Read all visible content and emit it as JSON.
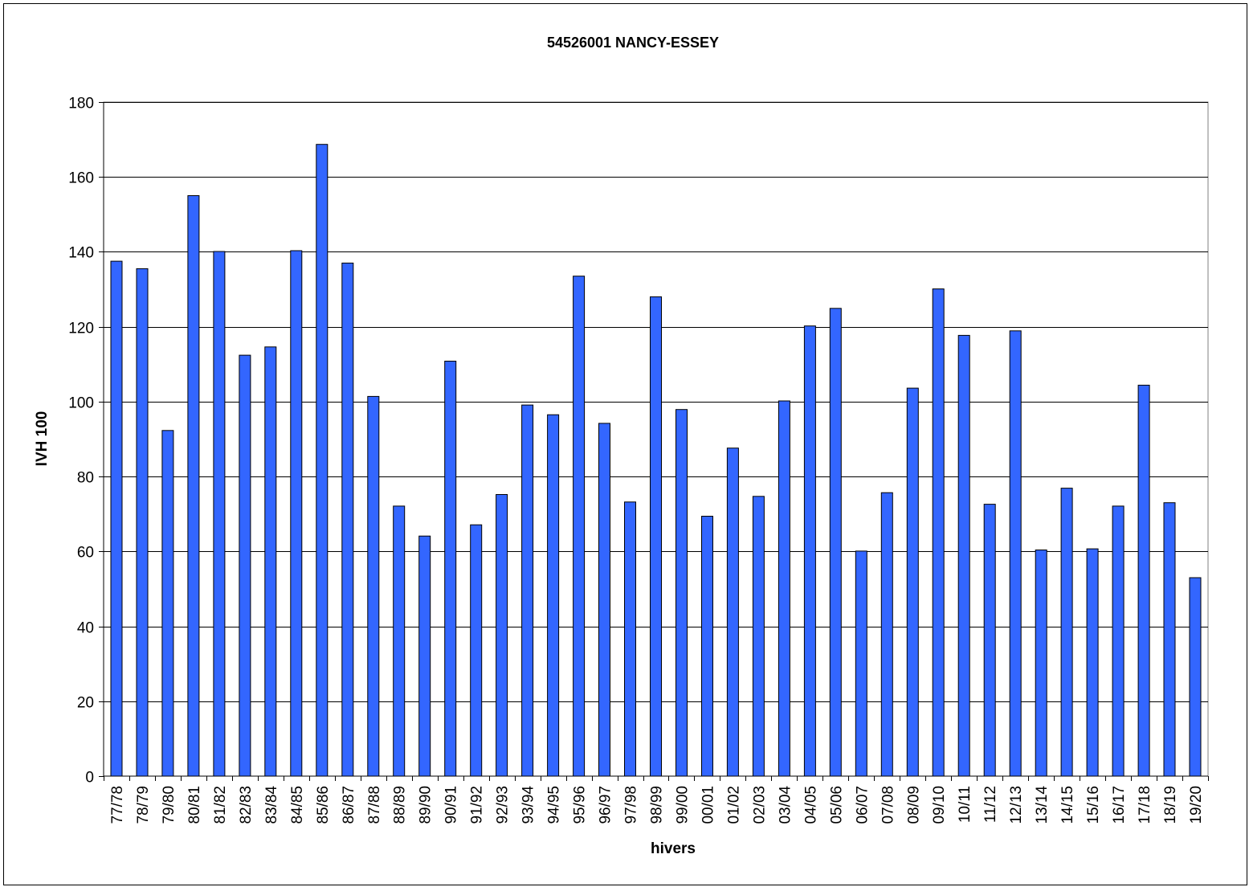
{
  "chart_data": {
    "type": "bar",
    "title": "54526001 NANCY-ESSEY",
    "xlabel": "hivers",
    "ylabel": "IVH 100",
    "ylim": [
      0,
      180
    ],
    "yticks": [
      0,
      20,
      40,
      60,
      80,
      100,
      120,
      140,
      160,
      180
    ],
    "grid": true,
    "legend": "none",
    "bar_color": "#3366ff",
    "bar_edge_color": "#000000",
    "categories": [
      "77/78",
      "78/79",
      "79/80",
      "80/81",
      "81/82",
      "82/83",
      "83/84",
      "84/85",
      "85/86",
      "86/87",
      "87/88",
      "88/89",
      "89/90",
      "90/91",
      "91/92",
      "92/93",
      "93/94",
      "94/95",
      "95/96",
      "96/97",
      "97/98",
      "98/99",
      "99/00",
      "00/01",
      "01/02",
      "02/03",
      "03/04",
      "04/05",
      "05/06",
      "06/07",
      "07/08",
      "08/09",
      "09/10",
      "10/11",
      "11/12",
      "12/13",
      "13/14",
      "14/15",
      "15/16",
      "16/17",
      "17/18",
      "18/19",
      "19/20"
    ],
    "values": [
      137.5,
      135.5,
      92.3,
      155.0,
      140.1,
      112.4,
      114.6,
      140.3,
      168.7,
      137.0,
      101.4,
      72.1,
      64.1,
      110.8,
      67.1,
      75.2,
      99.1,
      96.5,
      133.5,
      94.2,
      73.2,
      128.0,
      97.9,
      69.4,
      87.6,
      74.7,
      100.2,
      120.2,
      124.9,
      60.1,
      75.7,
      103.6,
      130.1,
      117.7,
      72.6,
      118.9,
      60.4,
      76.9,
      60.7,
      72.1,
      104.4,
      73.0,
      53.0
    ]
  }
}
